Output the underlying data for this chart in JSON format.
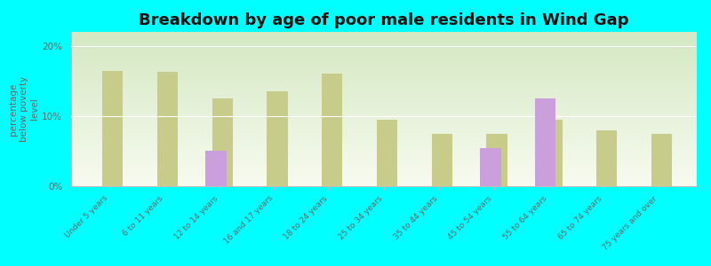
{
  "title": "Breakdown by age of poor male residents in Wind Gap",
  "ylabel": "percentage\nbelow poverty\nlevel",
  "categories": [
    "Under 5 years",
    "6 to 11 years",
    "12 to 14 years",
    "16 and 17 years",
    "18 to 24 years",
    "25 to 34 years",
    "35 to 44 years",
    "45 to 54 years",
    "55 to 64 years",
    "65 to 74 years",
    "75 years and over"
  ],
  "wind_gap": [
    null,
    null,
    5.0,
    null,
    null,
    null,
    null,
    5.5,
    12.5,
    null,
    null
  ],
  "pennsylvania": [
    16.5,
    16.3,
    12.5,
    13.5,
    16.0,
    9.5,
    7.5,
    7.5,
    9.5,
    8.0,
    7.5
  ],
  "wind_gap_color": "#c9a0dc",
  "pennsylvania_color": "#c8cc8a",
  "outer_bg": "#00ffff",
  "ylim": [
    0,
    22
  ],
  "yticks": [
    0,
    10,
    20
  ],
  "ytick_labels": [
    "0%",
    "10%",
    "20%"
  ],
  "bar_width": 0.38,
  "title_fontsize": 13,
  "axis_label_fontsize": 7.5,
  "tick_label_fontsize": 6.5,
  "legend_fontsize": 8.5
}
